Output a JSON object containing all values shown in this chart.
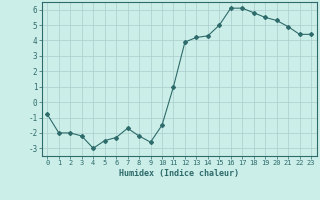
{
  "x": [
    0,
    1,
    2,
    3,
    4,
    5,
    6,
    7,
    8,
    9,
    10,
    11,
    12,
    13,
    14,
    15,
    16,
    17,
    18,
    19,
    20,
    21,
    22,
    23
  ],
  "y": [
    -0.8,
    -2.0,
    -2.0,
    -2.2,
    -3.0,
    -2.5,
    -2.3,
    -1.7,
    -2.2,
    -2.6,
    -1.5,
    1.0,
    3.9,
    4.2,
    4.3,
    5.0,
    6.1,
    6.1,
    5.8,
    5.5,
    5.3,
    4.9,
    4.4,
    4.4
  ],
  "xlim": [
    -0.5,
    23.5
  ],
  "ylim": [
    -3.5,
    6.5
  ],
  "yticks": [
    -3,
    -2,
    -1,
    0,
    1,
    2,
    3,
    4,
    5,
    6
  ],
  "xticks": [
    0,
    1,
    2,
    3,
    4,
    5,
    6,
    7,
    8,
    9,
    10,
    11,
    12,
    13,
    14,
    15,
    16,
    17,
    18,
    19,
    20,
    21,
    22,
    23
  ],
  "xlabel": "Humidex (Indice chaleur)",
  "line_color": "#2e6b6b",
  "marker": "D",
  "marker_size": 2,
  "background_color": "#cceee8",
  "grid_color": "#aacccc",
  "spine_color": "#2e6b6b"
}
